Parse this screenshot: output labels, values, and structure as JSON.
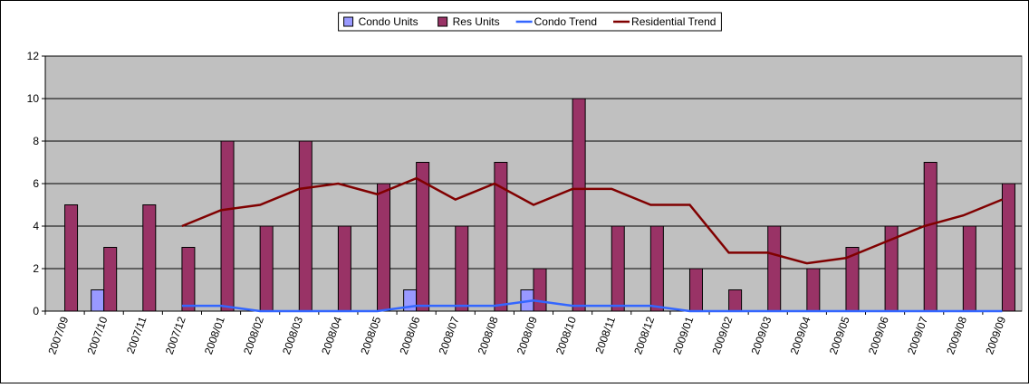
{
  "chart_data": {
    "type": "bar_line",
    "categories": [
      "2007/09",
      "2007/10",
      "2007/11",
      "2007/12",
      "2008/01",
      "2008/02",
      "2008/03",
      "2008/04",
      "2008/05",
      "2008/06",
      "2008/07",
      "2008/08",
      "2008/09",
      "2008/10",
      "2008/11",
      "2008/12",
      "2009/01",
      "2009/02",
      "2009/03",
      "2009/04",
      "2009/05",
      "2009/06",
      "2009/07",
      "2009/08",
      "2009/09"
    ],
    "series": [
      {
        "name": "Condo Units",
        "kind": "bar",
        "color": "#9999ff",
        "values": [
          0,
          1,
          0,
          0,
          0,
          0,
          0,
          0,
          0,
          1,
          0,
          0,
          1,
          0,
          0,
          0,
          0,
          0,
          0,
          0,
          0,
          0,
          0,
          0,
          0
        ]
      },
      {
        "name": "Res Units",
        "kind": "bar",
        "color": "#993366",
        "values": [
          5,
          3,
          5,
          3,
          8,
          4,
          8,
          4,
          6,
          7,
          4,
          7,
          2,
          10,
          4,
          4,
          2,
          1,
          4,
          2,
          3,
          4,
          7,
          4,
          6
        ]
      },
      {
        "name": "Condo Trend",
        "kind": "line",
        "color": "#3366ff",
        "values": [
          null,
          null,
          null,
          0.25,
          0.25,
          0,
          0,
          0,
          0,
          0.25,
          0.25,
          0.25,
          0.5,
          0.25,
          0.25,
          0.25,
          0,
          0,
          0,
          0,
          0,
          0,
          0,
          0,
          0
        ]
      },
      {
        "name": "Residential Trend",
        "kind": "line",
        "color": "#800000",
        "values": [
          null,
          null,
          null,
          4,
          4.75,
          5,
          5.75,
          6,
          5.5,
          6.25,
          5.25,
          6,
          5,
          5.75,
          5.75,
          5,
          5,
          2.75,
          2.75,
          2.25,
          2.5,
          3.25,
          4,
          4.5,
          5.25
        ]
      }
    ],
    "ylim": [
      0,
      12
    ],
    "yticks": [
      0,
      2,
      4,
      6,
      8,
      10,
      12
    ],
    "grid": true,
    "legend": "top"
  }
}
